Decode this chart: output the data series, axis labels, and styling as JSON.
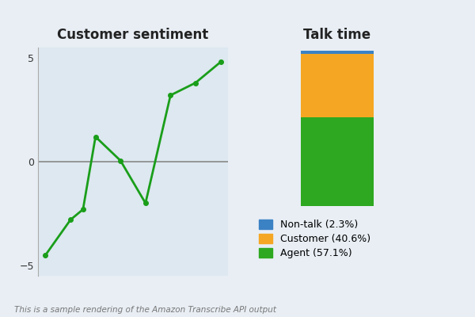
{
  "background_color": "#e8eef4",
  "left_title": "Customer sentiment",
  "right_title": "Talk time",
  "sentiment_x": [
    0,
    1,
    2,
    3,
    4,
    5,
    6,
    7
  ],
  "sentiment_y": [
    -4.5,
    -2.8,
    -2.3,
    1.2,
    0.05,
    -2.0,
    3.2,
    3.8,
    4.8
  ],
  "sentiment_x_full": [
    0,
    1,
    1.5,
    2,
    3,
    4,
    5,
    6,
    7
  ],
  "line_color": "#1a9e1a",
  "line_width": 2.0,
  "marker_size": 4,
  "ylim_left": [
    -5.5,
    5.5
  ],
  "yticks_left": [
    -5,
    0,
    5
  ],
  "bar_agent": 57.1,
  "bar_customer": 40.6,
  "bar_nontalk": 2.3,
  "color_agent": "#2ea820",
  "color_customer": "#f5a623",
  "color_nontalk": "#3b82c4",
  "legend_labels": [
    "Non-talk (2.3%)",
    "Customer (40.6%)",
    "Agent (57.1%)"
  ],
  "legend_colors": [
    "#3b82c4",
    "#f5a623",
    "#2ea820"
  ],
  "footnote": "This is a sample rendering of the Amazon Transcribe API output",
  "footnote_color": "#777777",
  "left_panel_color": "#dde8f0",
  "hline_color": "#888888",
  "title_fontsize": 12,
  "tick_fontsize": 9,
  "legend_fontsize": 9
}
